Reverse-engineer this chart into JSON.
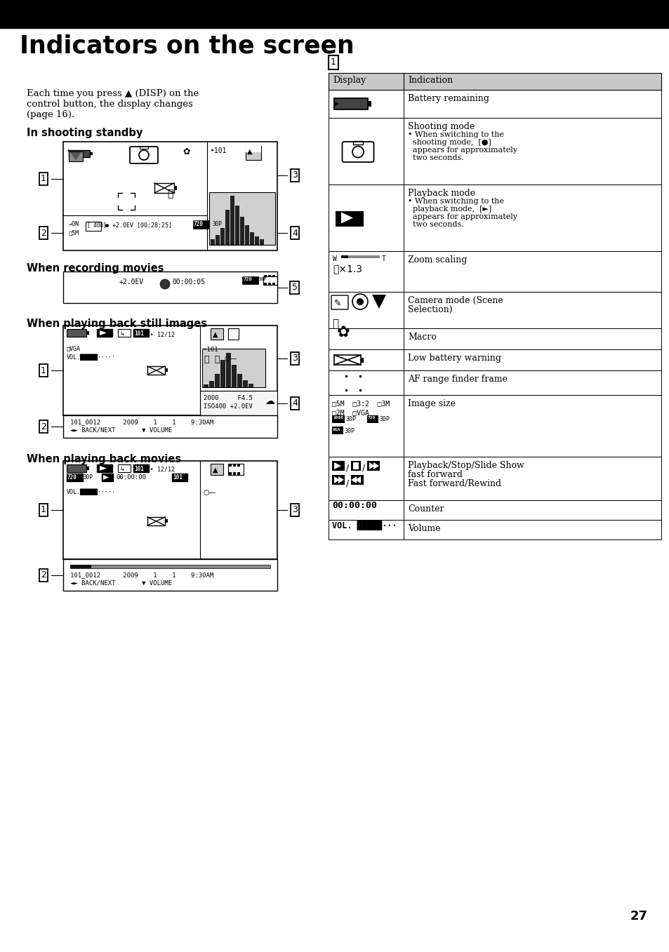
{
  "title": "Indicators on the screen",
  "page_number": "27",
  "bg": "#ffffff",
  "header_color": "#000000",
  "intro_text": "Each time you press ▲ (DISP) on the\ncontrol button, the display changes\n(page 16).",
  "sec1": "In shooting standby",
  "sec2": "When recording movies",
  "sec3": "When playing back still images",
  "sec4": "When playing back movies",
  "table_rows": [
    [
      "battery_icon",
      "Battery remaining",
      ""
    ],
    [
      "camera_icon",
      "Shooting mode",
      "• When switching to the\n  shooting mode,  [●]\n  appears for approximately\n  two seconds."
    ],
    [
      "play_icon",
      "Playback mode",
      "• When switching to the\n  playback mode,  [►]\n  appears for approximately\n  two seconds."
    ],
    [
      "zoom_icon",
      "Zoom scaling",
      ""
    ],
    [
      "scene_icon",
      "Camera mode (Scene\nSelection)",
      ""
    ],
    [
      "macro_icon",
      "Macro",
      ""
    ],
    [
      "lowbat_icon",
      "Low battery warning",
      ""
    ],
    [
      "af_icon",
      "AF range finder frame",
      ""
    ],
    [
      "imgsize_icon",
      "Image size",
      ""
    ],
    [
      "playctrl_icon",
      "Playback/Stop/Slide Show\nfast forward\nFast forward/Rewind",
      ""
    ],
    [
      "counter_icon",
      "Counter",
      ""
    ],
    [
      "volume_icon",
      "Volume",
      ""
    ]
  ]
}
